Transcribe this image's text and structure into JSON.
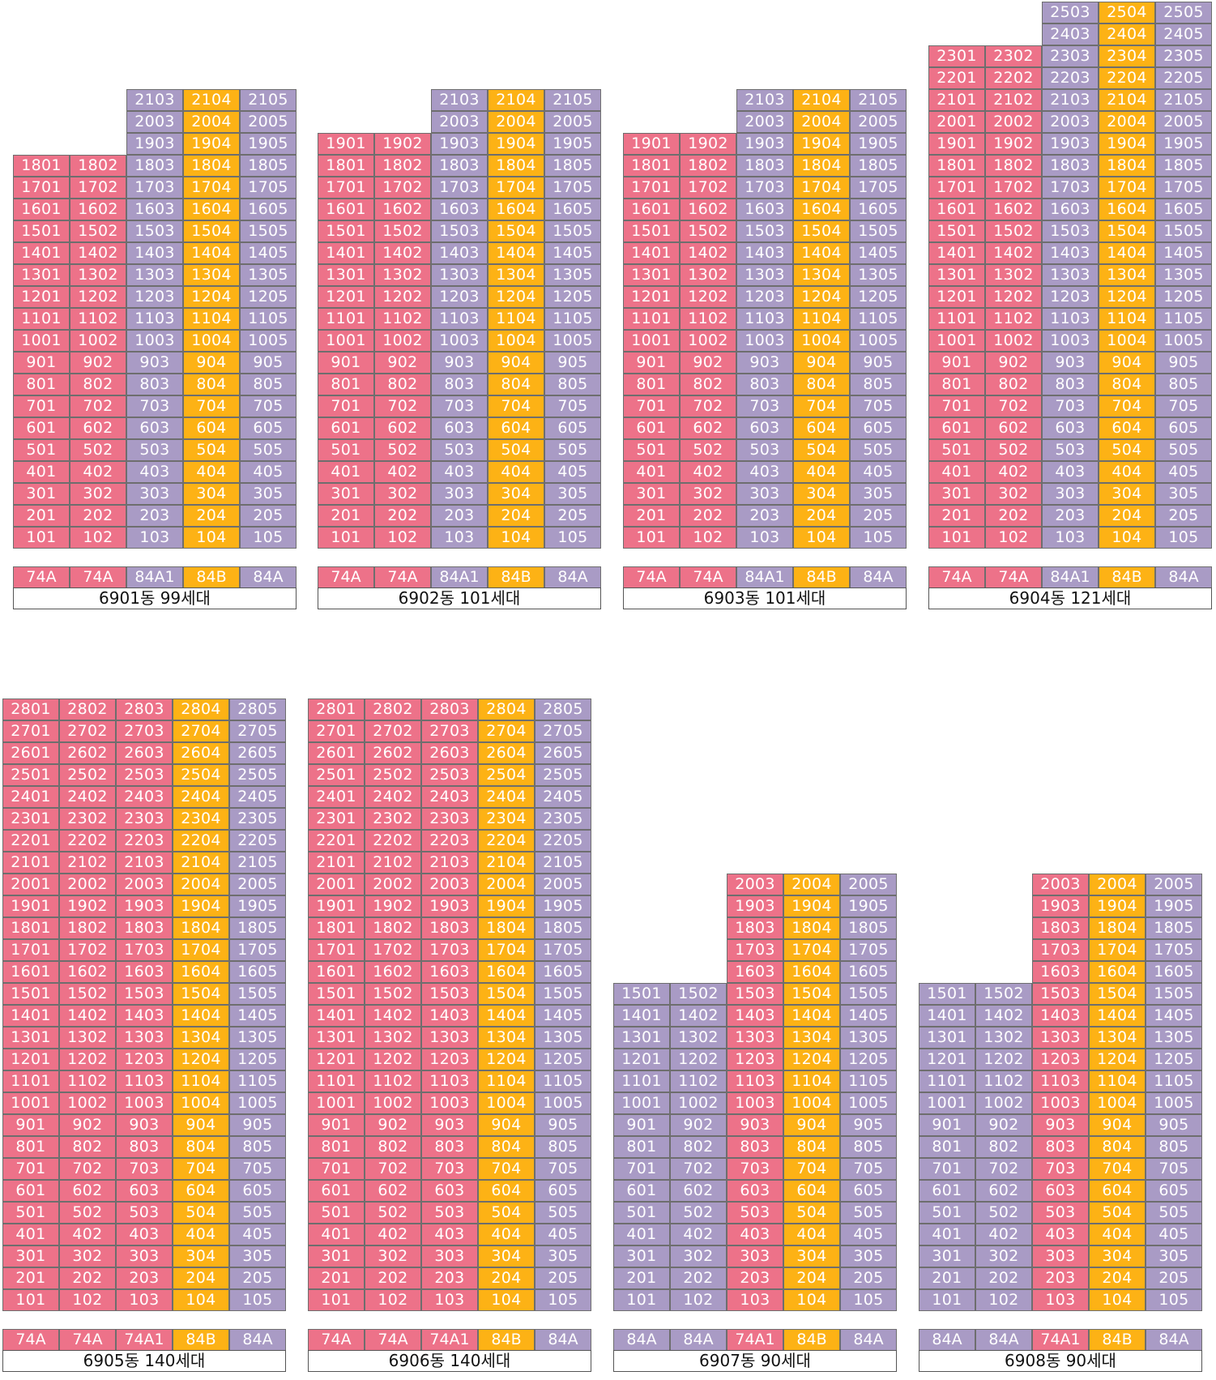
{
  "colors": {
    "pink": "#ed7289",
    "purple": "#a99bc5",
    "orange": "#fdb215"
  },
  "buildings": [
    {
      "id": "6901",
      "label": "6901동  99세대",
      "top_floor": 25,
      "floor_numbers": [
        21,
        20,
        19,
        18,
        17,
        16,
        15,
        14,
        13,
        12,
        11,
        10,
        9,
        8,
        7,
        6,
        5,
        4,
        3,
        2,
        1
      ],
      "max_floor_per_col": [
        18,
        18,
        21,
        21,
        21
      ],
      "col_colors": [
        "pink",
        "pink",
        "purple",
        "orange",
        "purple"
      ],
      "legend": [
        {
          "text": "74A",
          "color": "pink"
        },
        {
          "text": "74A",
          "color": "pink"
        },
        {
          "text": "84A1",
          "color": "purple"
        },
        {
          "text": "84B",
          "color": "orange"
        },
        {
          "text": "84A",
          "color": "purple"
        }
      ]
    },
    {
      "id": "6902",
      "label": "6902동  101세대",
      "top_floor": 25,
      "floor_numbers": [
        21,
        20,
        19,
        18,
        17,
        16,
        15,
        14,
        13,
        12,
        11,
        10,
        9,
        8,
        7,
        6,
        5,
        4,
        3,
        2,
        1
      ],
      "max_floor_per_col": [
        19,
        19,
        21,
        21,
        21
      ],
      "col_colors": [
        "pink",
        "pink",
        "purple",
        "orange",
        "purple"
      ],
      "legend": [
        {
          "text": "74A",
          "color": "pink"
        },
        {
          "text": "74A",
          "color": "pink"
        },
        {
          "text": "84A1",
          "color": "purple"
        },
        {
          "text": "84B",
          "color": "orange"
        },
        {
          "text": "84A",
          "color": "purple"
        }
      ]
    },
    {
      "id": "6903",
      "label": "6903동  101세대",
      "top_floor": 25,
      "floor_numbers": [
        21,
        20,
        19,
        18,
        17,
        16,
        15,
        14,
        13,
        12,
        11,
        10,
        9,
        8,
        7,
        6,
        5,
        4,
        3,
        2,
        1
      ],
      "max_floor_per_col": [
        19,
        19,
        21,
        21,
        21
      ],
      "col_colors": [
        "pink",
        "pink",
        "purple",
        "orange",
        "purple"
      ],
      "legend": [
        {
          "text": "74A",
          "color": "pink"
        },
        {
          "text": "74A",
          "color": "pink"
        },
        {
          "text": "84A1",
          "color": "purple"
        },
        {
          "text": "84B",
          "color": "orange"
        },
        {
          "text": "84A",
          "color": "purple"
        }
      ]
    },
    {
      "id": "6904",
      "label": "6904동  121세대",
      "top_floor": 25,
      "floor_numbers": [
        25,
        24,
        23,
        22,
        21,
        20,
        19,
        18,
        17,
        16,
        15,
        14,
        13,
        12,
        11,
        10,
        9,
        8,
        7,
        6,
        5,
        4,
        3,
        2,
        1
      ],
      "max_floor_per_col": [
        23,
        23,
        25,
        25,
        25
      ],
      "col_colors": [
        "pink",
        "pink",
        "purple",
        "orange",
        "purple"
      ],
      "legend": [
        {
          "text": "74A",
          "color": "pink"
        },
        {
          "text": "74A",
          "color": "pink"
        },
        {
          "text": "84A1",
          "color": "purple"
        },
        {
          "text": "84B",
          "color": "orange"
        },
        {
          "text": "84A",
          "color": "purple"
        }
      ]
    },
    {
      "id": "6905",
      "label": "6905동  140세대",
      "top_floor": 28,
      "floor_numbers": [
        28,
        27,
        26,
        25,
        24,
        23,
        22,
        21,
        20,
        19,
        18,
        17,
        16,
        15,
        14,
        13,
        12,
        11,
        10,
        9,
        8,
        7,
        6,
        5,
        4,
        3,
        2,
        1
      ],
      "max_floor_per_col": [
        28,
        28,
        28,
        28,
        28
      ],
      "col_colors": [
        "pink",
        "pink",
        "pink",
        "orange",
        "purple"
      ],
      "legend": [
        {
          "text": "74A",
          "color": "pink"
        },
        {
          "text": "74A",
          "color": "pink"
        },
        {
          "text": "74A1",
          "color": "pink"
        },
        {
          "text": "84B",
          "color": "orange"
        },
        {
          "text": "84A",
          "color": "purple"
        }
      ]
    },
    {
      "id": "6906",
      "label": "6906동  140세대",
      "top_floor": 28,
      "floor_numbers": [
        28,
        27,
        26,
        25,
        24,
        23,
        22,
        21,
        20,
        19,
        18,
        17,
        16,
        15,
        14,
        13,
        12,
        11,
        10,
        9,
        8,
        7,
        6,
        5,
        4,
        3,
        2,
        1
      ],
      "max_floor_per_col": [
        28,
        28,
        28,
        28,
        28
      ],
      "col_colors": [
        "pink",
        "pink",
        "pink",
        "orange",
        "purple"
      ],
      "legend": [
        {
          "text": "74A",
          "color": "pink"
        },
        {
          "text": "74A",
          "color": "pink"
        },
        {
          "text": "74A1",
          "color": "pink"
        },
        {
          "text": "84B",
          "color": "orange"
        },
        {
          "text": "84A",
          "color": "purple"
        }
      ]
    },
    {
      "id": "6907",
      "label": "6907동  90세대",
      "top_floor": 28,
      "floor_numbers": [
        20,
        19,
        18,
        17,
        16,
        15,
        14,
        13,
        12,
        11,
        10,
        9,
        8,
        7,
        6,
        5,
        4,
        3,
        2,
        1
      ],
      "max_floor_per_col": [
        15,
        15,
        20,
        20,
        20
      ],
      "col_colors": [
        "purple",
        "purple",
        "pink",
        "orange",
        "purple"
      ],
      "legend": [
        {
          "text": "84A",
          "color": "purple"
        },
        {
          "text": "84A",
          "color": "purple"
        },
        {
          "text": "74A1",
          "color": "pink"
        },
        {
          "text": "84B",
          "color": "orange"
        },
        {
          "text": "84A",
          "color": "purple"
        }
      ]
    },
    {
      "id": "6908",
      "label": "6908동  90세대",
      "top_floor": 28,
      "floor_numbers": [
        20,
        19,
        18,
        17,
        16,
        15,
        14,
        13,
        12,
        11,
        10,
        9,
        8,
        7,
        6,
        5,
        4,
        3,
        2,
        1
      ],
      "max_floor_per_col": [
        15,
        15,
        20,
        20,
        20
      ],
      "col_colors": [
        "purple",
        "purple",
        "pink",
        "orange",
        "purple"
      ],
      "legend": [
        {
          "text": "84A",
          "color": "purple"
        },
        {
          "text": "84A",
          "color": "purple"
        },
        {
          "text": "74A1",
          "color": "pink"
        },
        {
          "text": "84B",
          "color": "orange"
        },
        {
          "text": "84A",
          "color": "purple"
        }
      ]
    }
  ]
}
